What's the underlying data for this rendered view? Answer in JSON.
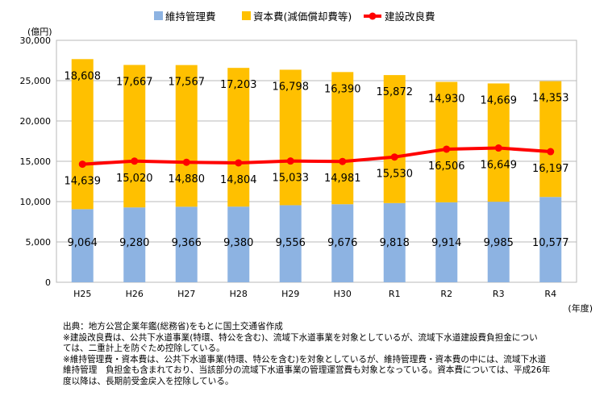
{
  "chart_data": {
    "type": "bar",
    "stacked": true,
    "categories": [
      "H25",
      "H26",
      "H27",
      "H28",
      "H29",
      "H30",
      "R1",
      "R2",
      "R3",
      "R4"
    ],
    "series": [
      {
        "name": "維持管理費",
        "type": "bar",
        "color": "#8db3e2",
        "values": [
          9064,
          9280,
          9366,
          9380,
          9556,
          9676,
          9818,
          9914,
          9985,
          10577
        ],
        "labels": [
          "9,064",
          "9,280",
          "9,366",
          "9,380",
          "9,556",
          "9,676",
          "9,818",
          "9,914",
          "9,985",
          "10,577"
        ]
      },
      {
        "name": "資本費(減価償却費等)",
        "type": "bar",
        "color": "#ffc000",
        "values": [
          18608,
          17667,
          17567,
          17203,
          16798,
          16390,
          15872,
          14930,
          14669,
          14353
        ],
        "labels": [
          "18,608",
          "17,667",
          "17,567",
          "17,203",
          "16,798",
          "16,390",
          "15,872",
          "14,930",
          "14,669",
          "14,353"
        ]
      },
      {
        "name": "建設改良費",
        "type": "line",
        "color": "#ff0000",
        "values": [
          14639,
          15020,
          14880,
          14804,
          15033,
          14981,
          15530,
          16506,
          16649,
          16197
        ],
        "labels": [
          "14,639",
          "15,020",
          "14,880",
          "14,804",
          "15,033",
          "14,981",
          "15,530",
          "16,506",
          "16,649",
          "16,197"
        ]
      }
    ],
    "ylim": [
      0,
      30000
    ],
    "yticks": [
      0,
      5000,
      10000,
      15000,
      20000,
      25000,
      30000
    ],
    "ytick_labels": [
      "0",
      "5,000",
      "10,000",
      "15,000",
      "20,000",
      "25,000",
      "30,000"
    ],
    "ylabel": "(億円)",
    "xlabel": "(年度)",
    "grid": true,
    "legend_position": "top"
  },
  "notes": [
    "出典：地方公営企業年鑑(総務省)をもとに国土交通省作成",
    "※建設改良費は、公共下水道事業(特環、特公を含む)、流域下水道事業を対象としているが、流域下水道建設費負担金につい",
    "ては、二重計上を防ぐため控除している。",
    "※維持管理費・資本費は、公共下水道事業(特環、特公を含む)を対象としているが、維持管理費・資本費の中には、流域下水道",
    "維持管理　負担金も含まれており、当該部分の流域下水道事業の管理運営費も対象となっている。資本費については、平成26年",
    "度以降は、長期前受金戻入を控除している。"
  ]
}
